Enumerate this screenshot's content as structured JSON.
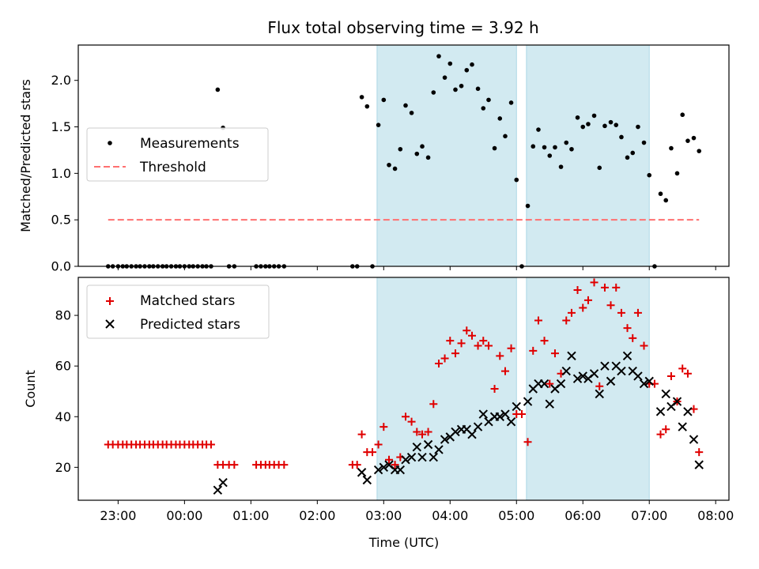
{
  "figure": {
    "title": "Flux total observing time = 3.92 h"
  },
  "colors": {
    "measurement": "#000000",
    "threshold": "#ff7070",
    "matched": "#e00000",
    "predicted": "#000000",
    "shade": "#add8e6"
  },
  "chart_data": [
    {
      "type": "scatter",
      "ylabel": "Matched/Predicted stars",
      "xlabel": "",
      "x_unit": "hours relative to 00:00 UTC",
      "xlim": [
        -1.6,
        8.2
      ],
      "ylim": [
        0.0,
        2.38
      ],
      "yticks": [
        0.0,
        0.5,
        1.0,
        1.5,
        2.0
      ],
      "ytick_labels": [
        "0.0",
        "0.5",
        "1.0",
        "1.5",
        "2.0"
      ],
      "grid": false,
      "legend_position": "center-left",
      "shaded_spans": [
        [
          2.9,
          5.0
        ],
        [
          5.15,
          7.0
        ]
      ],
      "legend": {
        "measurements": "Measurements",
        "threshold": "Threshold"
      },
      "threshold": {
        "value": 0.5,
        "x": [
          -1.15,
          7.75
        ]
      },
      "series": [
        {
          "name": "Measurements",
          "points": [
            [
              -1.15,
              0
            ],
            [
              -1.08,
              0
            ],
            [
              -1.0,
              0
            ],
            [
              -0.93,
              0
            ],
            [
              -0.87,
              0
            ],
            [
              -0.8,
              0
            ],
            [
              -0.73,
              0
            ],
            [
              -0.67,
              0
            ],
            [
              -0.6,
              0
            ],
            [
              -0.53,
              0
            ],
            [
              -0.47,
              0
            ],
            [
              -0.4,
              0
            ],
            [
              -0.33,
              0
            ],
            [
              -0.27,
              0
            ],
            [
              -0.2,
              0
            ],
            [
              -0.13,
              0
            ],
            [
              -0.07,
              0
            ],
            [
              0.0,
              0
            ],
            [
              0.07,
              0
            ],
            [
              0.13,
              0
            ],
            [
              0.2,
              0
            ],
            [
              0.27,
              0
            ],
            [
              0.33,
              0
            ],
            [
              0.4,
              0
            ],
            [
              0.5,
              1.9
            ],
            [
              0.58,
              1.49
            ],
            [
              0.67,
              0
            ],
            [
              0.75,
              0
            ],
            [
              1.08,
              0
            ],
            [
              1.15,
              0
            ],
            [
              1.22,
              0
            ],
            [
              1.28,
              0
            ],
            [
              1.35,
              0
            ],
            [
              1.42,
              0
            ],
            [
              1.5,
              0
            ],
            [
              2.53,
              0
            ],
            [
              2.6,
              0
            ],
            [
              2.67,
              1.82
            ],
            [
              2.75,
              1.72
            ],
            [
              2.83,
              0
            ],
            [
              2.92,
              1.52
            ],
            [
              3.0,
              1.79
            ],
            [
              3.08,
              1.09
            ],
            [
              3.17,
              1.05
            ],
            [
              3.25,
              1.26
            ],
            [
              3.33,
              1.73
            ],
            [
              3.42,
              1.65
            ],
            [
              3.5,
              1.21
            ],
            [
              3.58,
              1.29
            ],
            [
              3.67,
              1.17
            ],
            [
              3.75,
              1.87
            ],
            [
              3.83,
              2.26
            ],
            [
              3.92,
              2.03
            ],
            [
              4.0,
              2.18
            ],
            [
              4.08,
              1.9
            ],
            [
              4.17,
              1.94
            ],
            [
              4.25,
              2.11
            ],
            [
              4.33,
              2.17
            ],
            [
              4.42,
              1.91
            ],
            [
              4.5,
              1.7
            ],
            [
              4.58,
              1.79
            ],
            [
              4.67,
              1.27
            ],
            [
              4.75,
              1.59
            ],
            [
              4.83,
              1.4
            ],
            [
              4.92,
              1.76
            ],
            [
              5.0,
              0.93
            ],
            [
              5.08,
              0
            ],
            [
              5.17,
              0.65
            ],
            [
              5.25,
              1.29
            ],
            [
              5.33,
              1.47
            ],
            [
              5.42,
              1.28
            ],
            [
              5.5,
              1.19
            ],
            [
              5.58,
              1.28
            ],
            [
              5.67,
              1.07
            ],
            [
              5.75,
              1.33
            ],
            [
              5.83,
              1.26
            ],
            [
              5.92,
              1.6
            ],
            [
              6.0,
              1.5
            ],
            [
              6.08,
              1.53
            ],
            [
              6.17,
              1.62
            ],
            [
              6.25,
              1.06
            ],
            [
              6.33,
              1.51
            ],
            [
              6.42,
              1.55
            ],
            [
              6.5,
              1.52
            ],
            [
              6.58,
              1.39
            ],
            [
              6.67,
              1.17
            ],
            [
              6.75,
              1.22
            ],
            [
              6.83,
              1.5
            ],
            [
              6.92,
              1.33
            ],
            [
              7.0,
              0.98
            ],
            [
              7.08,
              0
            ],
            [
              7.17,
              0.78
            ],
            [
              7.25,
              0.71
            ],
            [
              7.33,
              1.27
            ],
            [
              7.42,
              1.0
            ],
            [
              7.5,
              1.63
            ],
            [
              7.58,
              1.35
            ],
            [
              7.67,
              1.38
            ],
            [
              7.75,
              1.24
            ]
          ]
        }
      ]
    },
    {
      "type": "scatter",
      "xlabel": "Time (UTC)",
      "ylabel": "Count",
      "x_unit": "hours relative to 00:00 UTC",
      "xlim": [
        -1.6,
        8.2
      ],
      "ylim": [
        7,
        95
      ],
      "yticks": [
        20,
        40,
        60,
        80
      ],
      "ytick_labels": [
        "20",
        "40",
        "60",
        "80"
      ],
      "xticks": [
        -1,
        0,
        1,
        2,
        3,
        4,
        5,
        6,
        7,
        8
      ],
      "xtick_labels": [
        "23:00",
        "00:00",
        "01:00",
        "02:00",
        "03:00",
        "04:00",
        "05:00",
        "06:00",
        "07:00",
        "08:00"
      ],
      "grid": false,
      "legend_position": "top-left",
      "shaded_spans": [
        [
          2.9,
          5.0
        ],
        [
          5.15,
          7.0
        ]
      ],
      "series": [
        {
          "name": "Matched stars",
          "marker": "plus",
          "points": [
            [
              -1.15,
              29
            ],
            [
              -1.08,
              29
            ],
            [
              -1.0,
              29
            ],
            [
              -0.93,
              29
            ],
            [
              -0.87,
              29
            ],
            [
              -0.8,
              29
            ],
            [
              -0.73,
              29
            ],
            [
              -0.67,
              29
            ],
            [
              -0.6,
              29
            ],
            [
              -0.53,
              29
            ],
            [
              -0.47,
              29
            ],
            [
              -0.4,
              29
            ],
            [
              -0.33,
              29
            ],
            [
              -0.27,
              29
            ],
            [
              -0.2,
              29
            ],
            [
              -0.13,
              29
            ],
            [
              -0.07,
              29
            ],
            [
              0.0,
              29
            ],
            [
              0.07,
              29
            ],
            [
              0.13,
              29
            ],
            [
              0.2,
              29
            ],
            [
              0.27,
              29
            ],
            [
              0.33,
              29
            ],
            [
              0.4,
              29
            ],
            [
              0.5,
              21
            ],
            [
              0.58,
              21
            ],
            [
              0.67,
              21
            ],
            [
              0.75,
              21
            ],
            [
              1.08,
              21
            ],
            [
              1.15,
              21
            ],
            [
              1.22,
              21
            ],
            [
              1.28,
              21
            ],
            [
              1.35,
              21
            ],
            [
              1.42,
              21
            ],
            [
              1.5,
              21
            ],
            [
              2.53,
              21
            ],
            [
              2.6,
              21
            ],
            [
              2.67,
              33
            ],
            [
              2.75,
              26
            ],
            [
              2.83,
              26
            ],
            [
              2.92,
              29
            ],
            [
              3.0,
              36
            ],
            [
              3.08,
              23
            ],
            [
              3.17,
              21
            ],
            [
              3.25,
              24
            ],
            [
              3.33,
              40
            ],
            [
              3.42,
              38
            ],
            [
              3.5,
              34
            ],
            [
              3.58,
              33
            ],
            [
              3.67,
              34
            ],
            [
              3.75,
              45
            ],
            [
              3.83,
              61
            ],
            [
              3.92,
              63
            ],
            [
              4.0,
              70
            ],
            [
              4.08,
              65
            ],
            [
              4.17,
              69
            ],
            [
              4.25,
              74
            ],
            [
              4.33,
              72
            ],
            [
              4.42,
              68
            ],
            [
              4.5,
              70
            ],
            [
              4.58,
              68
            ],
            [
              4.67,
              51
            ],
            [
              4.75,
              64
            ],
            [
              4.83,
              58
            ],
            [
              4.92,
              67
            ],
            [
              5.0,
              41
            ],
            [
              5.08,
              41
            ],
            [
              5.17,
              30
            ],
            [
              5.25,
              66
            ],
            [
              5.33,
              78
            ],
            [
              5.42,
              70
            ],
            [
              5.5,
              53
            ],
            [
              5.58,
              65
            ],
            [
              5.67,
              57
            ],
            [
              5.75,
              78
            ],
            [
              5.83,
              81
            ],
            [
              5.92,
              90
            ],
            [
              6.0,
              83
            ],
            [
              6.08,
              86
            ],
            [
              6.17,
              93
            ],
            [
              6.25,
              52
            ],
            [
              6.33,
              91
            ],
            [
              6.42,
              84
            ],
            [
              6.5,
              91
            ],
            [
              6.58,
              81
            ],
            [
              6.67,
              75
            ],
            [
              6.75,
              71
            ],
            [
              6.83,
              81
            ],
            [
              6.92,
              68
            ],
            [
              7.0,
              53
            ],
            [
              7.08,
              53
            ],
            [
              7.17,
              33
            ],
            [
              7.25,
              35
            ],
            [
              7.33,
              56
            ],
            [
              7.42,
              46
            ],
            [
              7.5,
              59
            ],
            [
              7.58,
              57
            ],
            [
              7.67,
              43
            ],
            [
              7.75,
              26
            ]
          ]
        },
        {
          "name": "Predicted stars",
          "marker": "x",
          "points": [
            [
              0.5,
              11
            ],
            [
              0.58,
              14
            ],
            [
              2.67,
              18
            ],
            [
              2.75,
              15
            ],
            [
              2.92,
              19
            ],
            [
              3.0,
              20
            ],
            [
              3.08,
              21
            ],
            [
              3.17,
              19
            ],
            [
              3.25,
              19
            ],
            [
              3.33,
              23
            ],
            [
              3.42,
              24
            ],
            [
              3.5,
              28
            ],
            [
              3.58,
              24
            ],
            [
              3.67,
              29
            ],
            [
              3.75,
              24
            ],
            [
              3.83,
              27
            ],
            [
              3.92,
              31
            ],
            [
              4.0,
              32
            ],
            [
              4.08,
              34
            ],
            [
              4.17,
              35
            ],
            [
              4.25,
              35
            ],
            [
              4.33,
              33
            ],
            [
              4.42,
              36
            ],
            [
              4.5,
              41
            ],
            [
              4.58,
              38
            ],
            [
              4.67,
              40
            ],
            [
              4.75,
              40
            ],
            [
              4.83,
              41
            ],
            [
              4.92,
              38
            ],
            [
              5.0,
              44
            ],
            [
              5.17,
              46
            ],
            [
              5.25,
              51
            ],
            [
              5.33,
              53
            ],
            [
              5.42,
              53
            ],
            [
              5.5,
              45
            ],
            [
              5.58,
              51
            ],
            [
              5.67,
              53
            ],
            [
              5.75,
              58
            ],
            [
              5.83,
              64
            ],
            [
              5.92,
              55
            ],
            [
              6.0,
              56
            ],
            [
              6.08,
              55
            ],
            [
              6.17,
              57
            ],
            [
              6.25,
              49
            ],
            [
              6.33,
              60
            ],
            [
              6.42,
              54
            ],
            [
              6.5,
              60
            ],
            [
              6.58,
              58
            ],
            [
              6.67,
              64
            ],
            [
              6.75,
              58
            ],
            [
              6.83,
              56
            ],
            [
              6.92,
              53
            ],
            [
              7.0,
              54
            ],
            [
              7.17,
              42
            ],
            [
              7.25,
              49
            ],
            [
              7.33,
              44
            ],
            [
              7.42,
              46
            ],
            [
              7.5,
              36
            ],
            [
              7.58,
              42
            ],
            [
              7.67,
              31
            ],
            [
              7.75,
              21
            ]
          ]
        }
      ]
    }
  ]
}
